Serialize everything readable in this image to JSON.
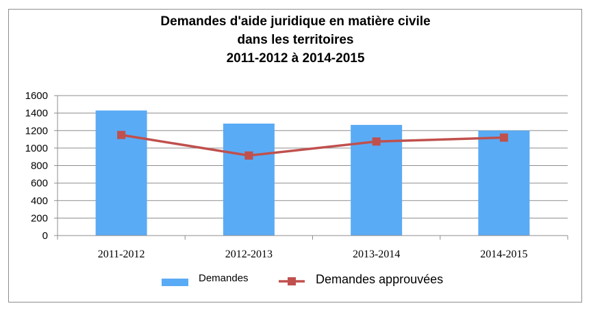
{
  "chart_data": {
    "type": "bar",
    "title_lines": [
      "Demandes d'aide juridique en matière civile",
      "dans les territoires",
      "2011-2012 à 2014-2015"
    ],
    "categories": [
      "2011-2012",
      "2012-2013",
      "2013-2014",
      "2014-2015"
    ],
    "series": [
      {
        "name": "Demandes",
        "type": "bar",
        "color": "#5aabf5",
        "values": [
          1430,
          1280,
          1265,
          1200
        ]
      },
      {
        "name": "Demandes approuvées",
        "type": "line",
        "color": "#c0504d",
        "marker": "square",
        "values": [
          1150,
          915,
          1075,
          1120
        ]
      }
    ],
    "ylim": [
      0,
      1600
    ],
    "yticks": [
      0,
      200,
      400,
      600,
      800,
      1000,
      1200,
      1400,
      1600
    ],
    "xlabel": "",
    "ylabel": "",
    "grid": true,
    "legend_position": "bottom"
  }
}
